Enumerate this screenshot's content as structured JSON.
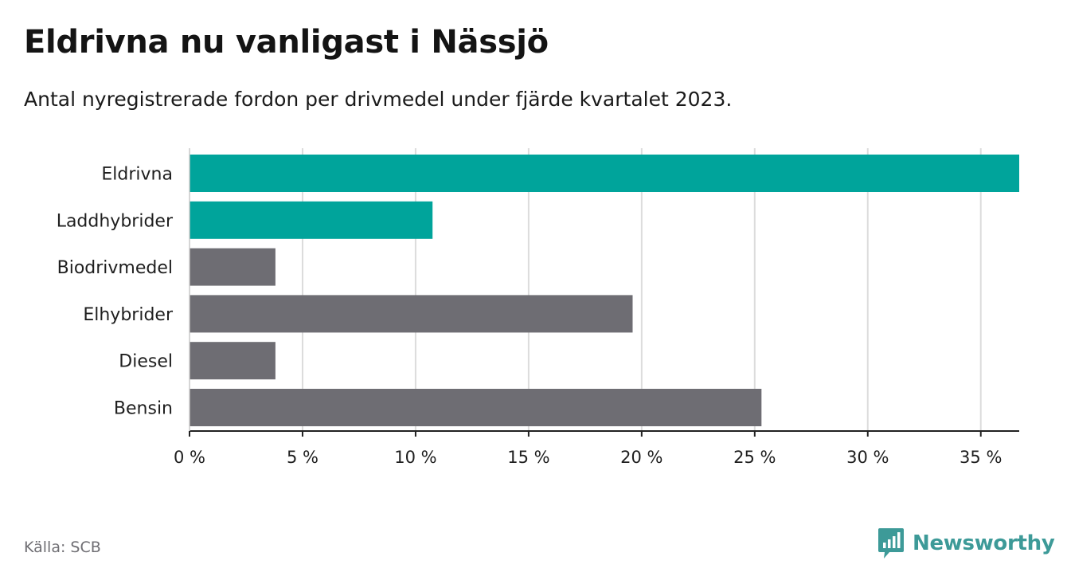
{
  "header": {
    "title": "Eldrivna nu vanligast i Nässjö",
    "subtitle": "Antal nyregistrerade fordon per drivmedel under fjärde kvartalet 2023."
  },
  "footer": {
    "source": "Källa: SCB",
    "brand": "Newsworthy"
  },
  "colors": {
    "highlight": "#00a49b",
    "default": "#6e6d73",
    "grid": "#dcdcdc",
    "brand": "#3d9a98"
  },
  "chart_data": {
    "type": "bar",
    "orientation": "horizontal",
    "categories": [
      "Eldrivna",
      "Laddhybrider",
      "Biodrivmedel",
      "Elhybrider",
      "Diesel",
      "Bensin"
    ],
    "values": [
      36.7,
      10.75,
      3.8,
      19.6,
      3.8,
      25.3
    ],
    "highlighted": [
      true,
      true,
      false,
      false,
      false,
      false
    ],
    "xlim": [
      0,
      36.7
    ],
    "xticks": [
      0,
      5,
      10,
      15,
      20,
      25,
      30,
      35
    ],
    "xtick_labels": [
      "0 %",
      "5 %",
      "10 %",
      "15 %",
      "20 %",
      "25 %",
      "30 %",
      "35 %"
    ],
    "grid": true,
    "legend": "none"
  }
}
